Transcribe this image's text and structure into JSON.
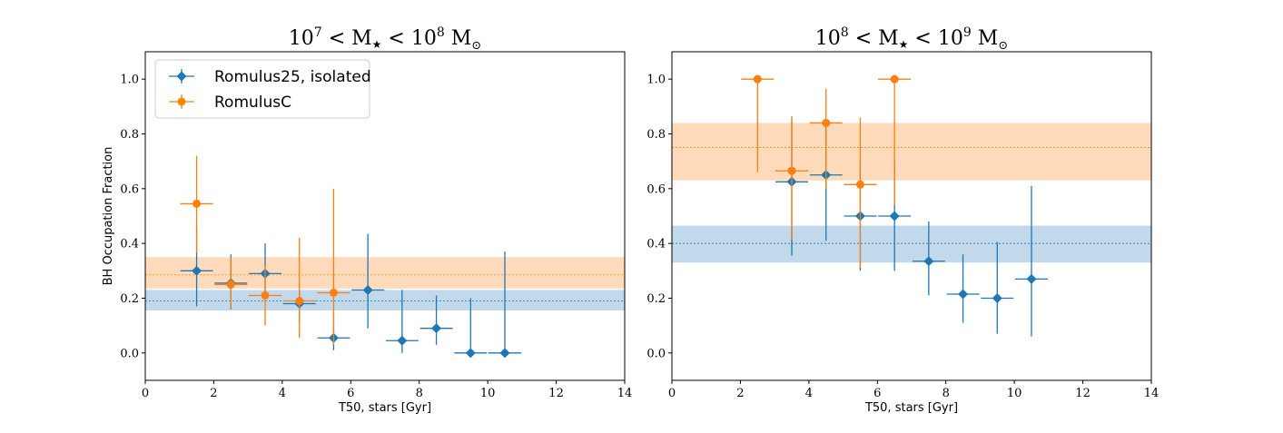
{
  "colors": {
    "blue": "#1f77b4",
    "orange": "#ff7f0e",
    "blue_band": "#1f77b4",
    "orange_band": "#ff7f0e"
  },
  "chart_data": [
    {
      "type": "scatter",
      "title": "10^7 < M★ < 10^8 M⊙",
      "title_parts": {
        "a": "10",
        "a_exp": "7",
        "lt1": " < M",
        "star": "★",
        "lt2": " < ",
        "b": "10",
        "b_exp": "8",
        "unit": " M",
        "sun": "⊙"
      },
      "xlabel": "T50, stars [Gyr]",
      "ylabel": "BH Occupation Fraction",
      "xlim": [
        0,
        14
      ],
      "ylim": [
        -0.1,
        1.1
      ],
      "xticks": [
        "0",
        "2",
        "4",
        "6",
        "8",
        "10",
        "12",
        "14"
      ],
      "yticks": [
        "0.0",
        "0.2",
        "0.4",
        "0.6",
        "0.8",
        "1.0"
      ],
      "legend": {
        "placement": "upper-left",
        "entries": [
          "Romulus25, isolated",
          "RomulusC"
        ]
      },
      "bands": [
        {
          "series": "Romulus25, isolated",
          "mean": 0.19,
          "low": 0.155,
          "high": 0.23
        },
        {
          "series": "RomulusC",
          "mean": 0.285,
          "low": 0.235,
          "high": 0.35
        }
      ],
      "series": [
        {
          "name": "Romulus25, isolated",
          "points": [
            {
              "x": 1.5,
              "y": 0.3,
              "ylow": 0.17,
              "yhigh": 0.46
            },
            {
              "x": 2.5,
              "y": 0.255,
              "ylow": 0.16,
              "yhigh": 0.36
            },
            {
              "x": 3.5,
              "y": 0.29,
              "ylow": 0.2,
              "yhigh": 0.4
            },
            {
              "x": 4.5,
              "y": 0.18,
              "ylow": 0.11,
              "yhigh": 0.23
            },
            {
              "x": 5.5,
              "y": 0.055,
              "ylow": 0.01,
              "yhigh": 0.15
            },
            {
              "x": 6.5,
              "y": 0.23,
              "ylow": 0.09,
              "yhigh": 0.435
            },
            {
              "x": 7.5,
              "y": 0.045,
              "ylow": 0.0,
              "yhigh": 0.23
            },
            {
              "x": 8.5,
              "y": 0.09,
              "ylow": 0.03,
              "yhigh": 0.21
            },
            {
              "x": 9.5,
              "y": 0.0,
              "ylow": 0.0,
              "yhigh": 0.2
            },
            {
              "x": 10.5,
              "y": 0.0,
              "ylow": 0.0,
              "yhigh": 0.37
            }
          ]
        },
        {
          "name": "RomulusC",
          "points": [
            {
              "x": 1.5,
              "y": 0.545,
              "ylow": 0.365,
              "yhigh": 0.72
            },
            {
              "x": 2.5,
              "y": 0.25,
              "ylow": 0.165,
              "yhigh": 0.35
            },
            {
              "x": 3.5,
              "y": 0.21,
              "ylow": 0.1,
              "yhigh": 0.32
            },
            {
              "x": 4.5,
              "y": 0.19,
              "ylow": 0.055,
              "yhigh": 0.42
            },
            {
              "x": 5.5,
              "y": 0.22,
              "ylow": 0.03,
              "yhigh": 0.6
            }
          ]
        }
      ]
    },
    {
      "type": "scatter",
      "title": "10^8 < M★ < 10^9 M⊙",
      "title_parts": {
        "a": "10",
        "a_exp": "8",
        "lt1": " < M",
        "star": "★",
        "lt2": " < ",
        "b": "10",
        "b_exp": "9",
        "unit": " M",
        "sun": "⊙"
      },
      "xlabel": "T50, stars [Gyr]",
      "ylabel": "",
      "xlim": [
        0,
        14
      ],
      "ylim": [
        -0.1,
        1.1
      ],
      "xticks": [
        "0",
        "2",
        "4",
        "6",
        "8",
        "10",
        "12",
        "14"
      ],
      "yticks": [
        "0.0",
        "0.2",
        "0.4",
        "0.6",
        "0.8",
        "1.0"
      ],
      "bands": [
        {
          "series": "Romulus25, isolated",
          "mean": 0.4,
          "low": 0.33,
          "high": 0.465
        },
        {
          "series": "RomulusC",
          "mean": 0.75,
          "low": 0.63,
          "high": 0.84
        }
      ],
      "series": [
        {
          "name": "Romulus25, isolated",
          "points": [
            {
              "x": 3.5,
              "y": 0.625,
              "ylow": 0.355,
              "yhigh": 0.85
            },
            {
              "x": 4.5,
              "y": 0.65,
              "ylow": 0.41,
              "yhigh": 0.84
            },
            {
              "x": 5.5,
              "y": 0.5,
              "ylow": 0.3,
              "yhigh": 0.7
            },
            {
              "x": 6.5,
              "y": 0.5,
              "ylow": 0.3,
              "yhigh": 0.7
            },
            {
              "x": 7.5,
              "y": 0.335,
              "ylow": 0.21,
              "yhigh": 0.48
            },
            {
              "x": 8.5,
              "y": 0.215,
              "ylow": 0.11,
              "yhigh": 0.36
            },
            {
              "x": 9.5,
              "y": 0.2,
              "ylow": 0.07,
              "yhigh": 0.405
            },
            {
              "x": 10.5,
              "y": 0.27,
              "ylow": 0.06,
              "yhigh": 0.61
            }
          ]
        },
        {
          "name": "RomulusC",
          "points": [
            {
              "x": 2.5,
              "y": 1.0,
              "ylow": 0.66,
              "yhigh": 1.0
            },
            {
              "x": 3.5,
              "y": 0.665,
              "ylow": 0.415,
              "yhigh": 0.865
            },
            {
              "x": 4.5,
              "y": 0.84,
              "ylow": 0.6,
              "yhigh": 0.965
            },
            {
              "x": 5.5,
              "y": 0.615,
              "ylow": 0.31,
              "yhigh": 0.86
            },
            {
              "x": 6.5,
              "y": 1.0,
              "ylow": 0.54,
              "yhigh": 1.0
            }
          ]
        }
      ]
    }
  ]
}
